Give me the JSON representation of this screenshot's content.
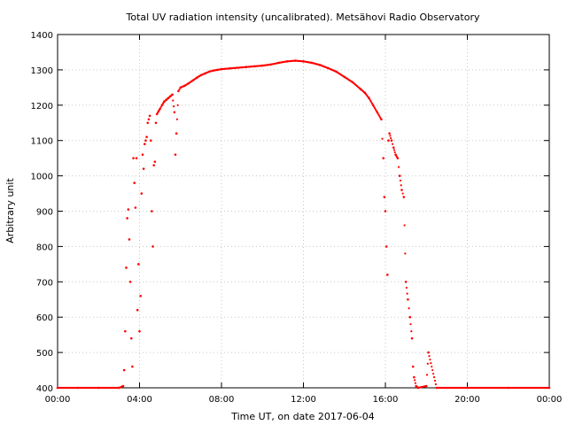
{
  "chart_data": {
    "type": "scatter",
    "title": "Total UV radiation intensity (uncalibrated). Metsähovi Radio Observatory",
    "xlabel": "Time UT, on date 2017-06-04",
    "ylabel": "Arbitrary unit",
    "xlim": [
      0,
      24
    ],
    "ylim": [
      400,
      1400
    ],
    "x_ticks": [
      0,
      4,
      8,
      12,
      16,
      20,
      24
    ],
    "x_tick_labels": [
      "00:00",
      "04:00",
      "08:00",
      "12:00",
      "16:00",
      "20:00",
      "00:00"
    ],
    "y_ticks": [
      400,
      500,
      600,
      700,
      800,
      900,
      1000,
      1100,
      1200,
      1300,
      1400
    ],
    "y_tick_labels": [
      "400",
      "500",
      "600",
      "700",
      "800",
      "900",
      "1000",
      "1100",
      "1200",
      "1300",
      "1400"
    ],
    "grid": true,
    "marker_color": "#ff0000",
    "series": [
      {
        "x_unit": "hours UT",
        "values": [
          [
            0.0,
            400
          ],
          [
            1.0,
            400
          ],
          [
            2.0,
            400
          ],
          [
            3.0,
            400
          ],
          [
            3.2,
            405
          ],
          [
            3.25,
            450
          ],
          [
            3.3,
            560
          ],
          [
            3.35,
            740
          ],
          [
            3.4,
            880
          ],
          [
            3.45,
            905
          ],
          [
            3.5,
            820
          ],
          [
            3.55,
            700
          ],
          [
            3.6,
            540
          ],
          [
            3.65,
            460
          ],
          [
            3.7,
            1050
          ],
          [
            3.75,
            980
          ],
          [
            3.8,
            910
          ],
          [
            3.85,
            1050
          ],
          [
            3.9,
            620
          ],
          [
            3.95,
            750
          ],
          [
            4.0,
            560
          ],
          [
            4.05,
            660
          ],
          [
            4.1,
            950
          ],
          [
            4.15,
            1060
          ],
          [
            4.2,
            1020
          ],
          [
            4.25,
            1090
          ],
          [
            4.3,
            1100
          ],
          [
            4.35,
            1110
          ],
          [
            4.4,
            1150
          ],
          [
            4.45,
            1160
          ],
          [
            4.5,
            1170
          ],
          [
            4.55,
            1100
          ],
          [
            4.6,
            900
          ],
          [
            4.65,
            800
          ],
          [
            4.7,
            1030
          ],
          [
            4.75,
            1040
          ],
          [
            4.8,
            1150
          ],
          [
            4.85,
            1175
          ],
          [
            4.9,
            1180
          ],
          [
            4.95,
            1185
          ],
          [
            5.0,
            1190
          ],
          [
            5.1,
            1200
          ],
          [
            5.2,
            1210
          ],
          [
            5.3,
            1215
          ],
          [
            5.4,
            1220
          ],
          [
            5.5,
            1225
          ],
          [
            5.6,
            1230
          ],
          [
            5.7,
            1180
          ],
          [
            5.75,
            1060
          ],
          [
            5.8,
            1120
          ],
          [
            5.9,
            1240
          ],
          [
            6.0,
            1250
          ],
          [
            6.2,
            1255
          ],
          [
            6.4,
            1262
          ],
          [
            6.6,
            1270
          ],
          [
            6.8,
            1278
          ],
          [
            7.0,
            1285
          ],
          [
            7.2,
            1290
          ],
          [
            7.4,
            1295
          ],
          [
            7.6,
            1298
          ],
          [
            7.8,
            1300
          ],
          [
            8.0,
            1302
          ],
          [
            8.4,
            1304
          ],
          [
            8.8,
            1306
          ],
          [
            9.2,
            1308
          ],
          [
            9.6,
            1310
          ],
          [
            10.0,
            1312
          ],
          [
            10.4,
            1315
          ],
          [
            10.8,
            1320
          ],
          [
            11.2,
            1324
          ],
          [
            11.6,
            1326
          ],
          [
            12.0,
            1324
          ],
          [
            12.4,
            1320
          ],
          [
            12.8,
            1314
          ],
          [
            13.2,
            1305
          ],
          [
            13.6,
            1295
          ],
          [
            14.0,
            1280
          ],
          [
            14.4,
            1265
          ],
          [
            14.8,
            1245
          ],
          [
            15.0,
            1235
          ],
          [
            15.2,
            1220
          ],
          [
            15.4,
            1200
          ],
          [
            15.6,
            1180
          ],
          [
            15.8,
            1160
          ],
          [
            15.9,
            1050
          ],
          [
            15.95,
            940
          ],
          [
            16.0,
            900
          ],
          [
            16.05,
            800
          ],
          [
            16.1,
            720
          ],
          [
            16.15,
            1100
          ],
          [
            16.2,
            1120
          ],
          [
            16.3,
            1100
          ],
          [
            16.4,
            1080
          ],
          [
            16.5,
            1060
          ],
          [
            16.6,
            1050
          ],
          [
            16.7,
            1000
          ],
          [
            16.8,
            960
          ],
          [
            16.9,
            940
          ],
          [
            17.0,
            700
          ],
          [
            17.1,
            650
          ],
          [
            17.2,
            600
          ],
          [
            17.3,
            540
          ],
          [
            17.35,
            460
          ],
          [
            17.4,
            430
          ],
          [
            17.5,
            405
          ],
          [
            17.6,
            400
          ],
          [
            18.0,
            405
          ],
          [
            18.1,
            500
          ],
          [
            18.5,
            400
          ],
          [
            20.0,
            400
          ],
          [
            22.0,
            400
          ],
          [
            24.0,
            400
          ]
        ]
      }
    ]
  }
}
